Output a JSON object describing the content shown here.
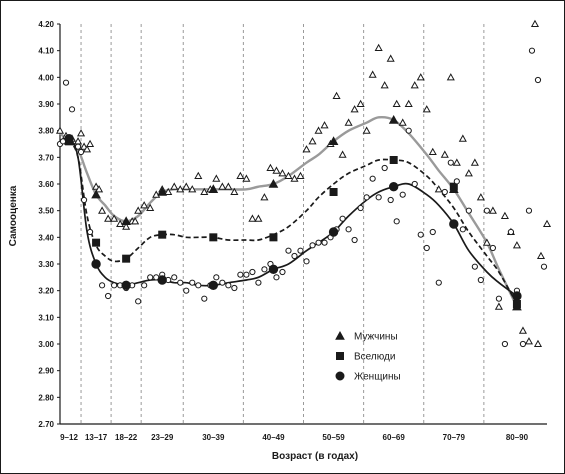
{
  "chart_data": {
    "type": "scatter",
    "title": "",
    "xlabel": "Возраст (в годах)",
    "ylabel": "Самооценка",
    "ylim": [
      2.7,
      4.2
    ],
    "yticks": [
      "2.70",
      "2.80",
      "2.90",
      "3.00",
      "3.10",
      "3.20",
      "3.30",
      "3.40",
      "3.50",
      "3.60",
      "3.70",
      "3.80",
      "3.90",
      "4.00",
      "4.10",
      "4.20"
    ],
    "xlim": [
      9,
      90
    ],
    "xtick_labels": [
      {
        "label": "9–12",
        "at": 10.5
      },
      {
        "label": "13–17",
        "at": 15
      },
      {
        "label": "18–22",
        "at": 20
      },
      {
        "label": "23–29",
        "at": 26
      },
      {
        "label": "30–39",
        "at": 34.5
      },
      {
        "label": "40–49",
        "at": 44.5
      },
      {
        "label": "50–59",
        "at": 54.5
      },
      {
        "label": "60–69",
        "at": 64.5
      },
      {
        "label": "70–79",
        "at": 74.5
      },
      {
        "label": "80–90",
        "at": 85
      }
    ],
    "vertical_gridlines": [
      12.5,
      17.5,
      22.5,
      29.5,
      39.5,
      49.5,
      59.5,
      69.5,
      79.5
    ],
    "grid": "vertical dashed",
    "legend_position": "bottom-right",
    "legend": [
      {
        "name": "Мужчины",
        "marker": "triangle"
      },
      {
        "name": "Вселюди",
        "marker": "square"
      },
      {
        "name": "Женщины",
        "marker": "circle"
      }
    ],
    "series": [
      {
        "name": "Мужчины",
        "marker": "triangle",
        "color": "#1a1a1a",
        "trend_color": "#9a9a9a",
        "trend_style": "solid",
        "trend": [
          [
            9,
            3.79
          ],
          [
            10.5,
            3.76
          ],
          [
            12,
            3.73
          ],
          [
            13.5,
            3.64
          ],
          [
            15,
            3.56
          ],
          [
            16.5,
            3.52
          ],
          [
            18,
            3.48
          ],
          [
            20,
            3.46
          ],
          [
            22,
            3.48
          ],
          [
            24,
            3.53
          ],
          [
            26,
            3.57
          ],
          [
            28,
            3.58
          ],
          [
            30,
            3.58
          ],
          [
            32,
            3.58
          ],
          [
            34.5,
            3.58
          ],
          [
            37,
            3.58
          ],
          [
            40,
            3.58
          ],
          [
            42,
            3.59
          ],
          [
            44.5,
            3.6
          ],
          [
            47,
            3.63
          ],
          [
            50,
            3.68
          ],
          [
            52,
            3.71
          ],
          [
            54.5,
            3.76
          ],
          [
            57,
            3.8
          ],
          [
            60,
            3.83
          ],
          [
            62,
            3.85
          ],
          [
            64.5,
            3.84
          ],
          [
            67,
            3.79
          ],
          [
            70,
            3.71
          ],
          [
            72,
            3.65
          ],
          [
            74.5,
            3.58
          ],
          [
            77,
            3.49
          ],
          [
            80,
            3.38
          ],
          [
            82,
            3.28
          ],
          [
            85,
            3.14
          ]
        ],
        "points": [
          [
            9,
            3.8
          ],
          [
            10,
            3.78
          ],
          [
            11,
            3.77
          ],
          [
            12,
            3.76
          ],
          [
            12.5,
            3.79
          ],
          [
            13,
            3.74
          ],
          [
            13.5,
            3.73
          ],
          [
            14,
            3.75
          ],
          [
            15,
            3.59
          ],
          [
            15.5,
            3.58
          ],
          [
            16,
            3.5
          ],
          [
            17,
            3.47
          ],
          [
            18,
            3.47
          ],
          [
            19,
            3.45
          ],
          [
            20,
            3.44
          ],
          [
            21,
            3.46
          ],
          [
            21.5,
            3.46
          ],
          [
            22,
            3.5
          ],
          [
            23,
            3.52
          ],
          [
            24,
            3.51
          ],
          [
            25,
            3.56
          ],
          [
            26,
            3.58
          ],
          [
            27,
            3.57
          ],
          [
            28,
            3.59
          ],
          [
            29,
            3.58
          ],
          [
            30,
            3.59
          ],
          [
            31,
            3.58
          ],
          [
            32,
            3.63
          ],
          [
            33,
            3.57
          ],
          [
            34,
            3.58
          ],
          [
            35,
            3.62
          ],
          [
            36,
            3.59
          ],
          [
            37,
            3.59
          ],
          [
            38,
            3.57
          ],
          [
            39,
            3.63
          ],
          [
            40,
            3.62
          ],
          [
            41,
            3.47
          ],
          [
            42,
            3.47
          ],
          [
            43,
            3.55
          ],
          [
            44,
            3.66
          ],
          [
            45,
            3.65
          ],
          [
            46,
            3.64
          ],
          [
            47,
            3.63
          ],
          [
            48,
            3.62
          ],
          [
            49,
            3.63
          ],
          [
            50,
            3.73
          ],
          [
            51,
            3.76
          ],
          [
            52,
            3.8
          ],
          [
            53,
            3.82
          ],
          [
            54,
            3.75
          ],
          [
            55,
            3.93
          ],
          [
            56,
            3.71
          ],
          [
            57,
            3.83
          ],
          [
            58,
            3.88
          ],
          [
            59,
            3.9
          ],
          [
            60,
            3.8
          ],
          [
            61,
            4.01
          ],
          [
            62,
            4.11
          ],
          [
            63,
            3.97
          ],
          [
            64,
            4.07
          ],
          [
            65,
            3.9
          ],
          [
            66,
            3.83
          ],
          [
            67,
            3.9
          ],
          [
            68,
            3.97
          ],
          [
            69,
            4
          ],
          [
            70,
            3.88
          ],
          [
            71,
            3.72
          ],
          [
            72,
            3.58
          ],
          [
            73,
            3.71
          ],
          [
            74,
            4
          ],
          [
            75,
            3.68
          ],
          [
            76,
            3.77
          ],
          [
            77,
            3.64
          ],
          [
            78,
            3.68
          ],
          [
            79,
            3.55
          ],
          [
            80,
            3.38
          ],
          [
            81,
            3.5
          ],
          [
            82,
            3.14
          ],
          [
            83,
            3.48
          ],
          [
            84,
            3.42
          ],
          [
            85,
            3.37
          ],
          [
            86,
            3.05
          ],
          [
            87,
            3.01
          ],
          [
            88,
            4.2
          ],
          [
            88.5,
            3.0
          ],
          [
            89,
            3.33
          ],
          [
            90,
            3.45
          ]
        ]
      },
      {
        "name": "Вселюди",
        "marker": "square",
        "color": "#1a1a1a",
        "trend_color": "#1a1a1a",
        "trend_style": "dashed",
        "trend": [
          [
            9,
            3.76
          ],
          [
            10.5,
            3.76
          ],
          [
            12,
            3.7
          ],
          [
            13.5,
            3.48
          ],
          [
            15,
            3.37
          ],
          [
            16.5,
            3.33
          ],
          [
            18,
            3.31
          ],
          [
            20,
            3.32
          ],
          [
            22,
            3.36
          ],
          [
            24,
            3.4
          ],
          [
            26,
            3.41
          ],
          [
            28,
            3.41
          ],
          [
            30,
            3.4
          ],
          [
            32,
            3.4
          ],
          [
            34.5,
            3.4
          ],
          [
            37,
            3.39
          ],
          [
            40,
            3.39
          ],
          [
            42,
            3.39
          ],
          [
            44.5,
            3.41
          ],
          [
            47,
            3.44
          ],
          [
            50,
            3.5
          ],
          [
            52,
            3.55
          ],
          [
            54.5,
            3.6
          ],
          [
            57,
            3.64
          ],
          [
            60,
            3.67
          ],
          [
            62,
            3.69
          ],
          [
            64.5,
            3.69
          ],
          [
            67,
            3.68
          ],
          [
            70,
            3.63
          ],
          [
            72,
            3.58
          ],
          [
            74.5,
            3.51
          ],
          [
            77,
            3.42
          ],
          [
            80,
            3.33
          ],
          [
            82,
            3.27
          ],
          [
            85,
            3.15
          ]
        ],
        "points": [
          [
            10.5,
            3.76
          ],
          [
            15,
            3.38
          ],
          [
            20,
            3.32
          ],
          [
            26,
            3.41
          ],
          [
            34.5,
            3.4
          ],
          [
            44.5,
            3.4
          ],
          [
            54.5,
            3.57
          ],
          [
            64.5,
            3.69
          ],
          [
            74.5,
            3.59
          ],
          [
            85,
            3.15
          ]
        ]
      },
      {
        "name": "Женщины",
        "marker": "circle",
        "color": "#1a1a1a",
        "trend_color": "#1a1a1a",
        "trend_style": "solid",
        "trend": [
          [
            9,
            3.76
          ],
          [
            10.5,
            3.77
          ],
          [
            12,
            3.7
          ],
          [
            13.5,
            3.42
          ],
          [
            15,
            3.3
          ],
          [
            16.5,
            3.25
          ],
          [
            18,
            3.23
          ],
          [
            20,
            3.22
          ],
          [
            22,
            3.23
          ],
          [
            24,
            3.24
          ],
          [
            26,
            3.24
          ],
          [
            28,
            3.23
          ],
          [
            30,
            3.23
          ],
          [
            32,
            3.22
          ],
          [
            34.5,
            3.22
          ],
          [
            37,
            3.23
          ],
          [
            40,
            3.24
          ],
          [
            42,
            3.25
          ],
          [
            44.5,
            3.28
          ],
          [
            47,
            3.3
          ],
          [
            50,
            3.35
          ],
          [
            52,
            3.38
          ],
          [
            54.5,
            3.42
          ],
          [
            57,
            3.48
          ],
          [
            60,
            3.54
          ],
          [
            62,
            3.57
          ],
          [
            64.5,
            3.59
          ],
          [
            67,
            3.6
          ],
          [
            70,
            3.56
          ],
          [
            72,
            3.52
          ],
          [
            74.5,
            3.45
          ],
          [
            77,
            3.35
          ],
          [
            80,
            3.27
          ],
          [
            82,
            3.23
          ],
          [
            85,
            3.18
          ]
        ],
        "points": [
          [
            9,
            3.75
          ],
          [
            9.5,
            3.76
          ],
          [
            10,
            3.98
          ],
          [
            11,
            3.88
          ],
          [
            12,
            3.74
          ],
          [
            12.5,
            3.72
          ],
          [
            13,
            3.54
          ],
          [
            14,
            3.42
          ],
          [
            15,
            3.3
          ],
          [
            16,
            3.22
          ],
          [
            17,
            3.18
          ],
          [
            18,
            3.22
          ],
          [
            19,
            3.22
          ],
          [
            20,
            3.21
          ],
          [
            21,
            3.22
          ],
          [
            22,
            3.16
          ],
          [
            23,
            3.22
          ],
          [
            24,
            3.25
          ],
          [
            25,
            3.25
          ],
          [
            26,
            3.26
          ],
          [
            27,
            3.24
          ],
          [
            28,
            3.25
          ],
          [
            29,
            3.23
          ],
          [
            30,
            3.2
          ],
          [
            31,
            3.23
          ],
          [
            32,
            3.22
          ],
          [
            33,
            3.17
          ],
          [
            34,
            3.22
          ],
          [
            35,
            3.25
          ],
          [
            36,
            3.23
          ],
          [
            37,
            3.22
          ],
          [
            38,
            3.21
          ],
          [
            39,
            3.26
          ],
          [
            40,
            3.26
          ],
          [
            41,
            3.27
          ],
          [
            42,
            3.23
          ],
          [
            43,
            3.28
          ],
          [
            44,
            3.3
          ],
          [
            45,
            3.25
          ],
          [
            46,
            3.27
          ],
          [
            47,
            3.35
          ],
          [
            48,
            3.33
          ],
          [
            49,
            3.35
          ],
          [
            50,
            3.31
          ],
          [
            51,
            3.37
          ],
          [
            52,
            3.38
          ],
          [
            53,
            3.38
          ],
          [
            54,
            3.4
          ],
          [
            55,
            3.43
          ],
          [
            56,
            3.47
          ],
          [
            57,
            3.43
          ],
          [
            58,
            3.39
          ],
          [
            59,
            3.51
          ],
          [
            60,
            3.55
          ],
          [
            61,
            3.62
          ],
          [
            62,
            3.55
          ],
          [
            63,
            3.66
          ],
          [
            64,
            3.54
          ],
          [
            65,
            3.46
          ],
          [
            66,
            3.56
          ],
          [
            67,
            3.8
          ],
          [
            68,
            3.6
          ],
          [
            69,
            3.41
          ],
          [
            70,
            3.36
          ],
          [
            71,
            3.42
          ],
          [
            72,
            3.23
          ],
          [
            73,
            3.57
          ],
          [
            74,
            3.68
          ],
          [
            75,
            3.61
          ],
          [
            76,
            3.43
          ],
          [
            77,
            3.5
          ],
          [
            78,
            3.29
          ],
          [
            79,
            3.24
          ],
          [
            80,
            3.5
          ],
          [
            81,
            3.36
          ],
          [
            82,
            3.17
          ],
          [
            83,
            3.0
          ],
          [
            84,
            3.42
          ],
          [
            85,
            3.2
          ],
          [
            86,
            3.0
          ],
          [
            87,
            3.5
          ],
          [
            87.5,
            4.1
          ],
          [
            88.5,
            3.99
          ],
          [
            89.5,
            3.29
          ]
        ]
      }
    ]
  }
}
